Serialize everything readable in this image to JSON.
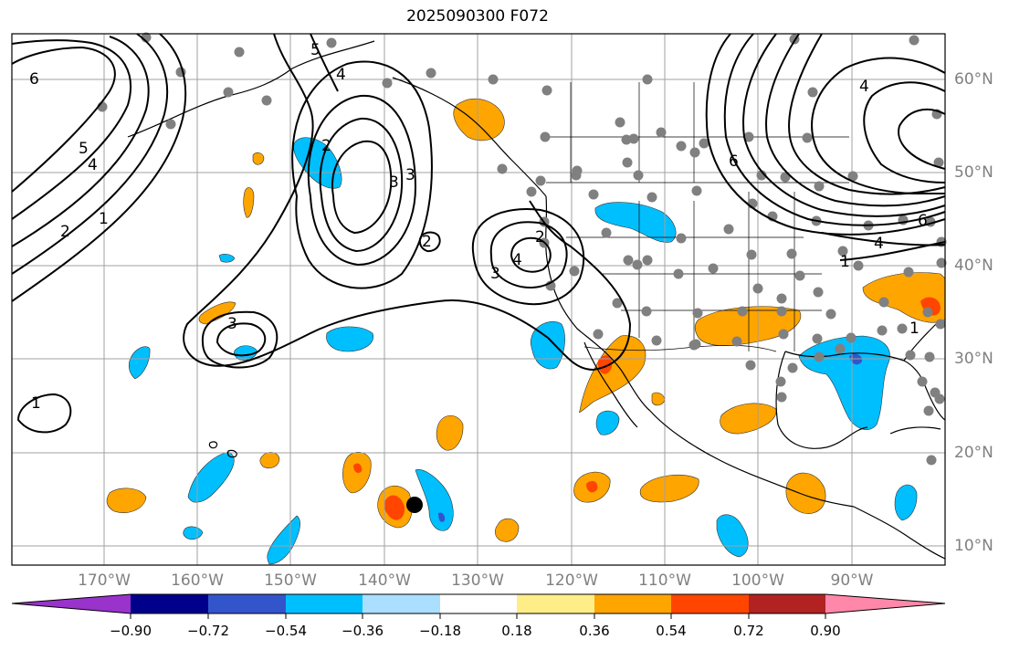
{
  "title": "2025090300 F072",
  "latitude_labels": [
    "60°N",
    "50°N",
    "40°N",
    "30°N",
    "20°N",
    "10°N"
  ],
  "longitude_labels": [
    "170°W",
    "160°W",
    "150°W",
    "140°W",
    "130°W",
    "120°W",
    "110°W",
    "100°W",
    "90°W"
  ],
  "contour_labels": [
    "6",
    "5",
    "4",
    "2",
    "1",
    "2",
    "4",
    "3",
    "3",
    "2",
    "5",
    "3",
    "4",
    "2",
    "3",
    "1",
    "6",
    "4",
    "6",
    "4",
    "1",
    "1"
  ],
  "colorbar": {
    "tick_labels": [
      "−0.90",
      "−0.72",
      "−0.54",
      "−0.36",
      "−0.18",
      "0.18",
      "0.36",
      "0.54",
      "0.72",
      "0.90"
    ],
    "colors": [
      "#9933cc",
      "#00008b",
      "#3355cc",
      "#00bfff",
      "#aadfff",
      "#ffffff",
      "#ffee88",
      "#ffa500",
      "#ff4500",
      "#b22222",
      "#ff88aa"
    ]
  },
  "colors": {
    "frame": "#000000",
    "grid": "#a0a0a0",
    "station": "#808080",
    "positive_fill": "#ffa500",
    "positive_core": "#ff4500",
    "negative_fill": "#00bfff",
    "negative_core": "#3355cc",
    "contour": "#000000"
  }
}
